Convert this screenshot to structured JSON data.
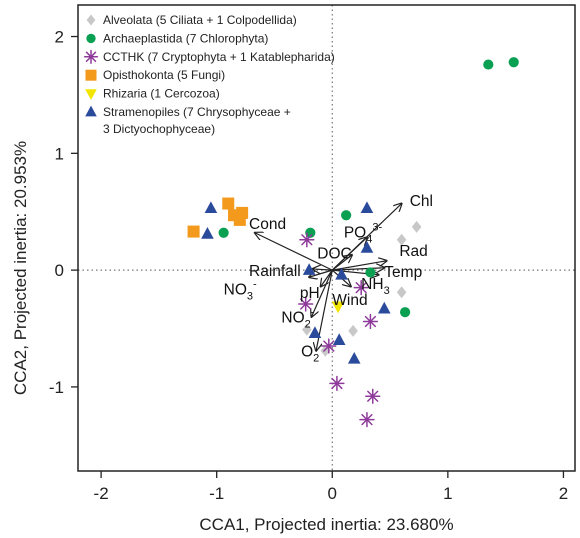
{
  "chart_data": {
    "type": "scatter",
    "xlabel": "CCA1, Projected inertia: 23.680%",
    "ylabel": "CCA2, Projected inertia: 20.953%",
    "xlim": [
      -2.2,
      2.1
    ],
    "ylim": [
      -1.72,
      2.27
    ],
    "xticks": [
      -2,
      -1,
      0,
      1,
      2
    ],
    "yticks": [
      -1,
      0,
      1,
      2
    ],
    "reference_lines": {
      "x": 0,
      "y": 0,
      "style": "dotted"
    },
    "legend_position": "top-left",
    "series": [
      {
        "name": "Alveolata (5 Ciliata + 1 Colpodellida)",
        "marker": "diamond",
        "color": "#c8c8c8",
        "points": [
          [
            0.73,
            0.37
          ],
          [
            0.6,
            0.26
          ],
          [
            0.6,
            -0.19
          ],
          [
            0.18,
            -0.52
          ],
          [
            -0.22,
            -0.51
          ],
          [
            -0.06,
            -0.69
          ]
        ]
      },
      {
        "name": "Archaeplastida (7 Chlorophyta)",
        "marker": "circle",
        "color": "#0aa052",
        "points": [
          [
            1.35,
            1.76
          ],
          [
            1.57,
            1.78
          ],
          [
            0.12,
            0.47
          ],
          [
            -0.19,
            0.32
          ],
          [
            -0.94,
            0.32
          ],
          [
            0.33,
            -0.02
          ],
          [
            0.63,
            -0.36
          ]
        ]
      },
      {
        "name": "CCTHK (7 Cryptophyta + 1 Katablepharida)",
        "marker": "asterisk",
        "color": "#8e3a9a",
        "points": [
          [
            -0.22,
            0.26
          ],
          [
            -0.23,
            -0.29
          ],
          [
            0.25,
            -0.15
          ],
          [
            0.33,
            -0.44
          ],
          [
            -0.03,
            -0.65
          ],
          [
            0.04,
            -0.97
          ],
          [
            0.35,
            -1.08
          ],
          [
            0.3,
            -1.28
          ]
        ]
      },
      {
        "name": "Opisthokonta (5 Fungi)",
        "marker": "square",
        "color": "#f39a1c",
        "points": [
          [
            -1.2,
            0.33
          ],
          [
            -0.9,
            0.57
          ],
          [
            -0.85,
            0.47
          ],
          [
            -0.78,
            0.49
          ],
          [
            -0.8,
            0.43
          ]
        ]
      },
      {
        "name": "Rhizaria (1 Cercozoa)",
        "marker": "triangle-down",
        "color": "#f2e500",
        "points": [
          [
            0.05,
            -0.31
          ]
        ]
      },
      {
        "name": "Stramenopiles (7 Chrysophyceae + 3 Dictyochophyceae)",
        "marker": "triangle-up",
        "color": "#2a4a9c",
        "points": [
          [
            -1.05,
            0.53
          ],
          [
            -1.08,
            0.31
          ],
          [
            0.3,
            0.53
          ],
          [
            0.3,
            0.19
          ],
          [
            -0.2,
            0.0
          ],
          [
            0.08,
            -0.04
          ],
          [
            -0.15,
            -0.54
          ],
          [
            0.06,
            -0.6
          ],
          [
            0.19,
            -0.76
          ],
          [
            0.45,
            -0.33
          ]
        ]
      }
    ],
    "vectors": [
      {
        "label_html": "Chl <i>a</i>",
        "end": [
          0.6,
          0.57
        ],
        "label_at": [
          0.67,
          0.55
        ]
      },
      {
        "label_html": "Cond",
        "end": [
          -0.67,
          0.32
        ],
        "label_at": [
          -0.72,
          0.35
        ]
      },
      {
        "label_html": "PO<tspan font-size='11' dy='5'>4</tspan><tspan font-size='11' dy='-12'>3-</tspan>",
        "end": [
          0.3,
          0.28
        ],
        "label_at": [
          0.1,
          0.28
        ]
      },
      {
        "label_html": "DOC",
        "end": [
          0.17,
          0.13
        ],
        "label_at": [
          -0.13,
          0.1
        ]
      },
      {
        "label_html": "Rad",
        "end": [
          0.47,
          0.08
        ],
        "label_at": [
          0.58,
          0.12
        ]
      },
      {
        "label_html": "Temp",
        "end": [
          0.45,
          0.02
        ],
        "label_at": [
          0.45,
          -0.06
        ]
      },
      {
        "label_html": "NH<tspan font-size='11' dy='5'>3</tspan>",
        "end": [
          0.4,
          -0.04
        ],
        "label_at": [
          0.25,
          -0.16
        ]
      },
      {
        "label_html": "Rainfall",
        "end": [
          -0.17,
          0.01
        ],
        "label_at": [
          -0.72,
          -0.05
        ]
      },
      {
        "label_html": "NO<tspan font-size='11' dy='5'>3</tspan><tspan font-size='11' dy='-12'>-</tspan>",
        "end": [
          -0.2,
          -0.06
        ],
        "label_at": [
          -0.94,
          -0.21
        ]
      },
      {
        "label_html": "pH",
        "end": [
          -0.1,
          -0.14
        ],
        "label_at": [
          -0.28,
          -0.24
        ]
      },
      {
        "label_html": "Wind",
        "end": [
          0.16,
          -0.14
        ],
        "label_at": [
          0.0,
          -0.3
        ]
      },
      {
        "label_html": "NO<tspan font-size='11' dy='5'>2</tspan><tspan font-size='11' dy='-12'>-</tspan>",
        "end": [
          -0.18,
          -0.4
        ],
        "label_at": [
          -0.44,
          -0.45
        ]
      },
      {
        "label_html": "O<tspan font-size='11' dy='5'>2</tspan>",
        "end": [
          -0.14,
          -0.69
        ],
        "label_at": [
          -0.27,
          -0.74
        ]
      }
    ]
  }
}
